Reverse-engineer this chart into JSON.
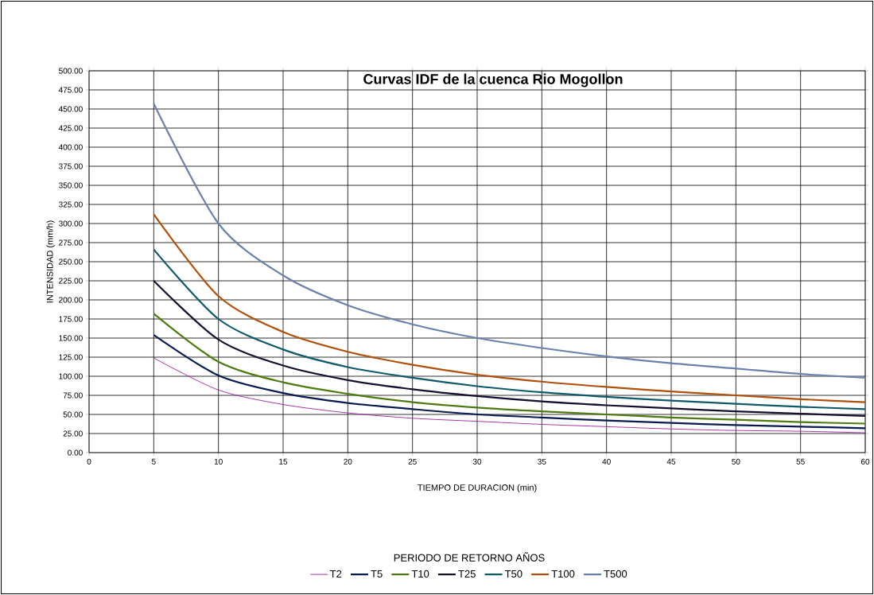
{
  "chart_data": {
    "type": "line",
    "title": "Curvas IDF de la cuenca Rio Mogollon",
    "xlabel": "TIEMPO DE DURACION (min)",
    "ylabel": "INTENSIDAD (mm/h)",
    "legend_title": "PERIODO DE RETORNO AÑOS",
    "x": [
      5,
      10,
      15,
      20,
      25,
      30,
      35,
      40,
      45,
      50,
      55,
      60
    ],
    "series": [
      {
        "name": "T2",
        "color": "#a020a0",
        "values": [
          124,
          82,
          63,
          52,
          45,
          41,
          37,
          34,
          31,
          29,
          28,
          26
        ]
      },
      {
        "name": "T5",
        "color": "#0a1a50",
        "values": [
          154,
          101,
          78,
          65,
          57,
          50,
          46,
          42,
          39,
          36,
          34,
          32
        ]
      },
      {
        "name": "T10",
        "color": "#4f7a10",
        "values": [
          182,
          119,
          92,
          77,
          66,
          59,
          54,
          50,
          46,
          43,
          40,
          38
        ]
      },
      {
        "name": "T25",
        "color": "#151030",
        "values": [
          225,
          148,
          114,
          95,
          83,
          74,
          67,
          62,
          58,
          54,
          51,
          48
        ]
      },
      {
        "name": "T50",
        "color": "#0f5a6a",
        "values": [
          266,
          175,
          135,
          112,
          98,
          87,
          79,
          73,
          68,
          64,
          60,
          57
        ]
      },
      {
        "name": "T100",
        "color": "#b0500a",
        "values": [
          312,
          205,
          158,
          132,
          115,
          102,
          93,
          86,
          80,
          75,
          70,
          66
        ]
      },
      {
        "name": "T500",
        "color": "#6a82aa",
        "values": [
          457,
          300,
          232,
          193,
          168,
          150,
          137,
          126,
          117,
          110,
          103,
          98
        ]
      }
    ],
    "xlim": [
      0,
      60
    ],
    "ylim": [
      0,
      500
    ],
    "xticks": [
      0,
      5,
      10,
      15,
      20,
      25,
      30,
      35,
      40,
      45,
      50,
      55,
      60
    ],
    "yticks": [
      {
        "value": 0,
        "label": "0.00"
      },
      {
        "value": 25,
        "label": "25.00"
      },
      {
        "value": 50,
        "label": "50.00"
      },
      {
        "value": 75,
        "label": "75.00"
      },
      {
        "value": 100,
        "label": "100.00"
      },
      {
        "value": 125,
        "label": "125.00"
      },
      {
        "value": 150,
        "label": "150.00"
      },
      {
        "value": 175,
        "label": "175.00"
      },
      {
        "value": 200,
        "label": "200.00"
      },
      {
        "value": 225,
        "label": "225.00"
      },
      {
        "value": 250,
        "label": "250.00"
      },
      {
        "value": 275,
        "label": "275.00"
      },
      {
        "value": 300,
        "label": "300.00"
      },
      {
        "value": 325,
        "label": "325.00"
      },
      {
        "value": 350,
        "label": "350.00"
      },
      {
        "value": 375,
        "label": "375.00"
      },
      {
        "value": 400,
        "label": "400.00"
      },
      {
        "value": 425,
        "label": "425.00"
      },
      {
        "value": 450,
        "label": "450.00"
      },
      {
        "value": 475,
        "label": "475.00"
      },
      {
        "value": 500,
        "label": "500.00"
      }
    ],
    "grid": true,
    "legend": "bottom",
    "marker": "none",
    "line_style": "solid"
  }
}
